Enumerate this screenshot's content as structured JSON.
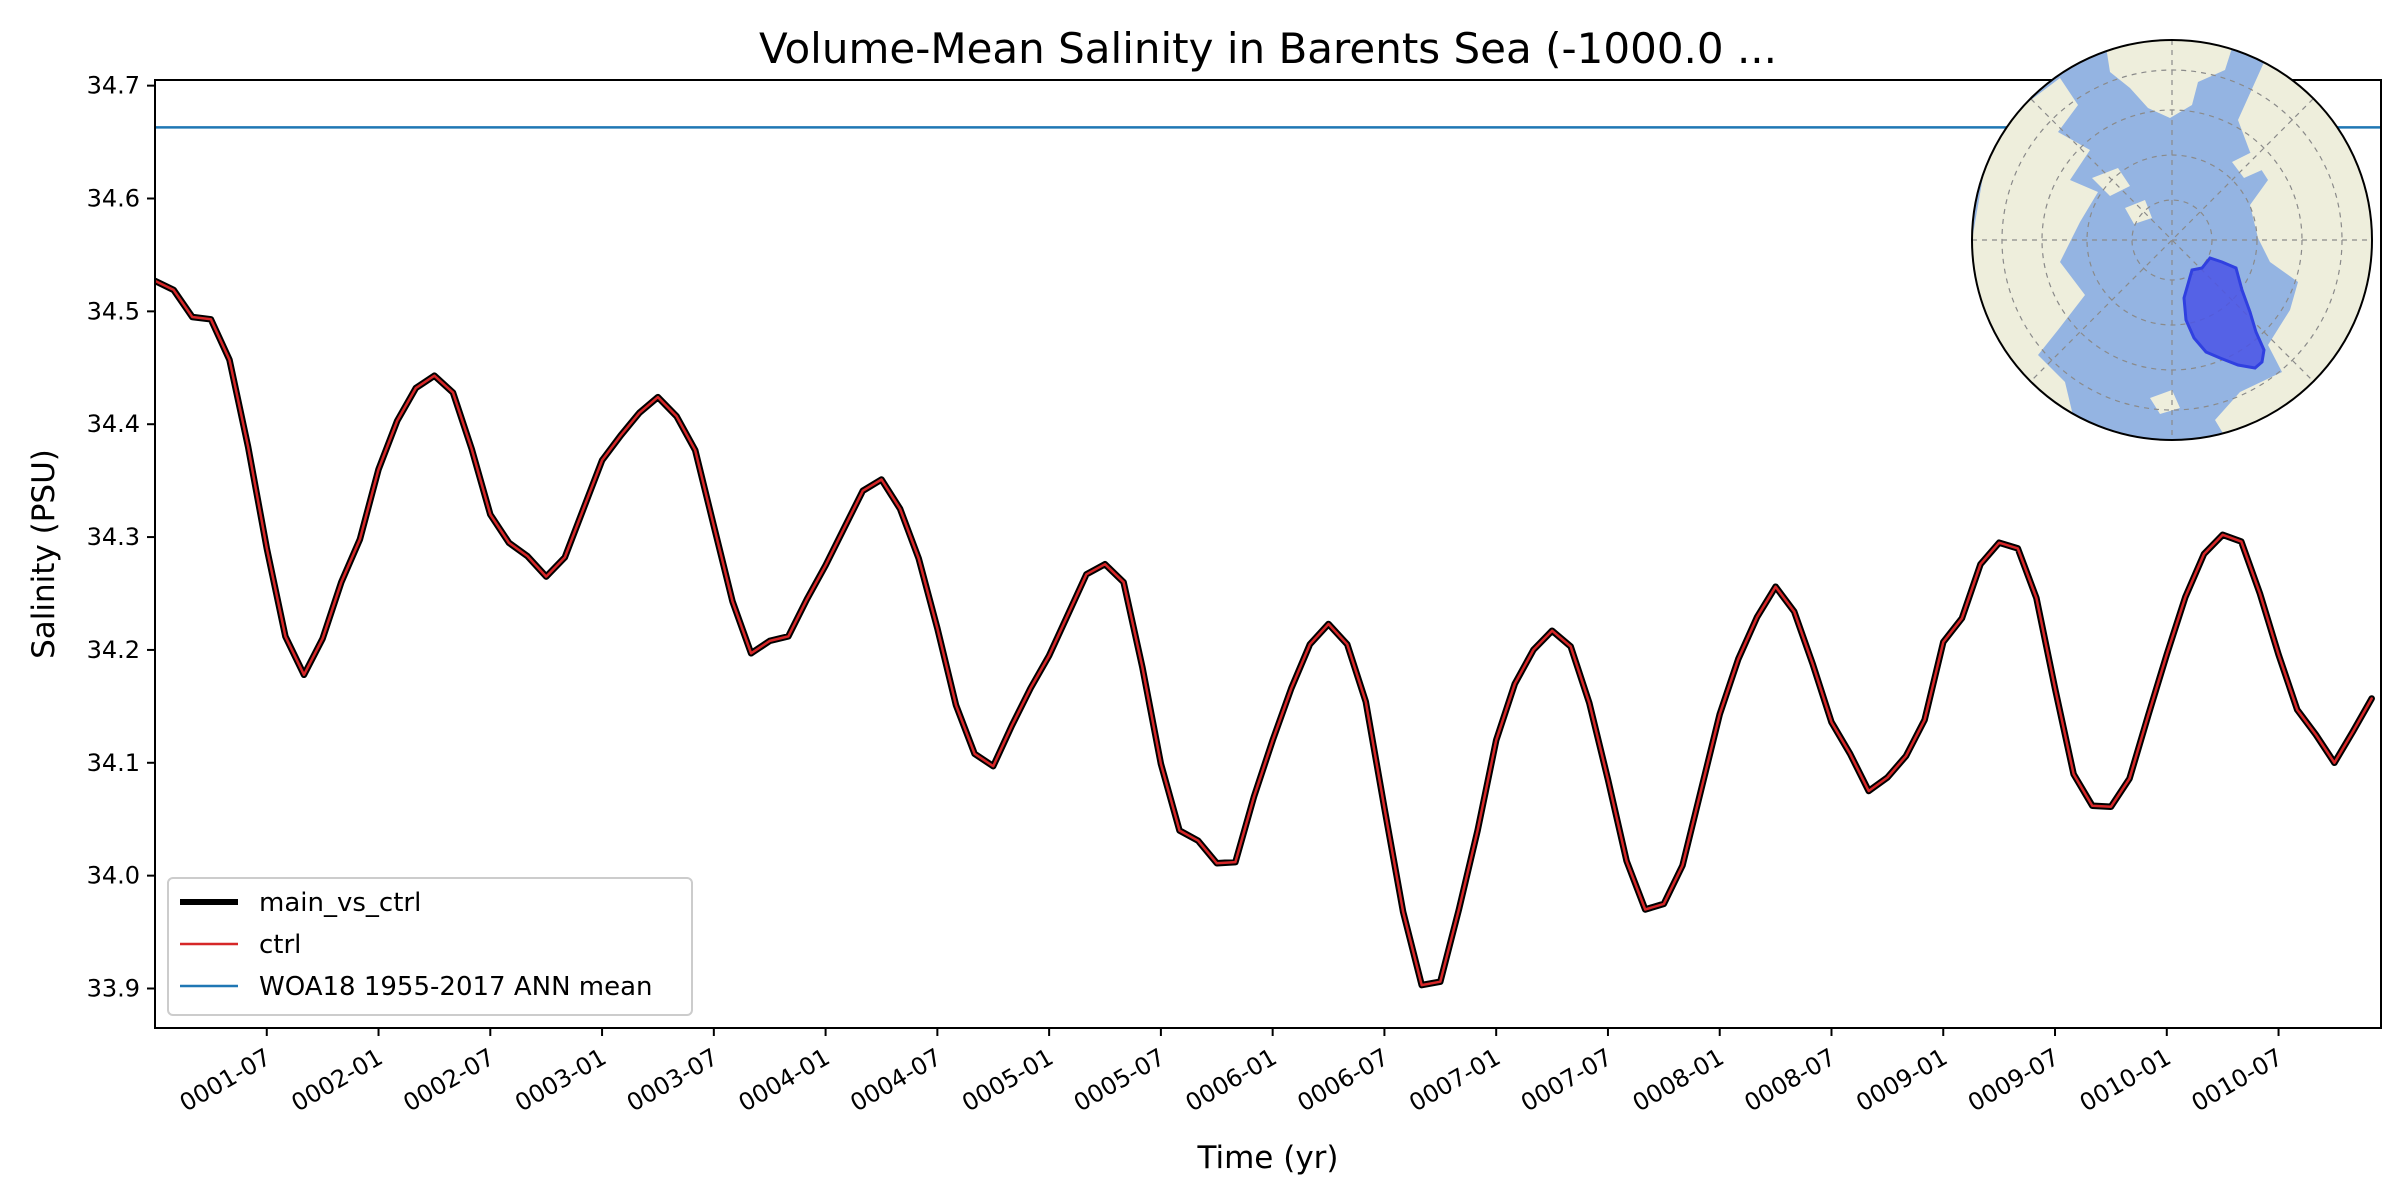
{
  "chart_data": {
    "type": "line",
    "title": "Volume-Mean Salinity in Barents Sea (-1000.0 ...",
    "xlabel": "Time (yr)",
    "ylabel": "Salinity (PSU)",
    "ylim": [
      33.865,
      34.705
    ],
    "y_ticks": [
      "33.9",
      "34.0",
      "34.1",
      "34.2",
      "34.3",
      "34.4",
      "34.5",
      "34.6",
      "34.7"
    ],
    "x_ticks": [
      {
        "t": 6.0,
        "label": "0001-07"
      },
      {
        "t": 12.0,
        "label": "0002-01"
      },
      {
        "t": 18.0,
        "label": "0002-07"
      },
      {
        "t": 24.0,
        "label": "0003-01"
      },
      {
        "t": 30.0,
        "label": "0003-07"
      },
      {
        "t": 36.0,
        "label": "0004-01"
      },
      {
        "t": 42.0,
        "label": "0004-07"
      },
      {
        "t": 48.0,
        "label": "0005-01"
      },
      {
        "t": 54.0,
        "label": "0005-07"
      },
      {
        "t": 60.0,
        "label": "0006-01"
      },
      {
        "t": 66.0,
        "label": "0006-07"
      },
      {
        "t": 72.0,
        "label": "0007-01"
      },
      {
        "t": 78.0,
        "label": "0007-07"
      },
      {
        "t": 84.0,
        "label": "0008-01"
      },
      {
        "t": 90.0,
        "label": "0008-07"
      },
      {
        "t": 96.0,
        "label": "0009-01"
      },
      {
        "t": 102.0,
        "label": "0009-07"
      },
      {
        "t": 108.0,
        "label": "0010-01"
      },
      {
        "t": 114.0,
        "label": "0010-07"
      }
    ],
    "xlim": [
      0.0,
      119.5
    ],
    "series": [
      {
        "name": "main_vs_ctrl",
        "color": "#000000",
        "values": [
          34.527,
          34.519,
          34.495,
          34.493,
          34.457,
          34.38,
          34.29,
          34.212,
          34.178,
          34.21,
          34.26,
          34.298,
          34.36,
          34.403,
          34.432,
          34.443,
          34.428,
          34.378,
          34.32,
          34.295,
          34.283,
          34.265,
          34.282,
          34.325,
          34.368,
          34.39,
          34.41,
          34.424,
          34.407,
          34.377,
          34.31,
          34.243,
          34.197,
          34.208,
          34.212,
          34.245,
          34.275,
          34.308,
          34.341,
          34.351,
          34.325,
          34.281,
          34.219,
          34.151,
          34.108,
          34.097,
          34.133,
          34.166,
          34.195,
          34.231,
          34.267,
          34.276,
          34.26,
          34.185,
          34.099,
          34.04,
          34.031,
          34.011,
          34.012,
          34.07,
          34.12,
          34.166,
          34.205,
          34.223,
          34.205,
          34.154,
          34.06,
          33.968,
          33.903,
          33.906,
          33.97,
          34.04,
          34.12,
          34.17,
          34.2,
          34.217,
          34.203,
          34.153,
          34.085,
          34.013,
          33.97,
          33.975,
          34.009,
          34.076,
          34.143,
          34.192,
          34.229,
          34.256,
          34.234,
          34.187,
          34.136,
          34.108,
          34.075,
          34.087,
          34.106,
          34.138,
          34.207,
          34.228,
          34.276,
          34.295,
          34.29,
          34.246,
          34.166,
          34.09,
          34.062,
          34.061,
          34.086,
          34.142,
          34.196,
          34.247,
          34.285,
          34.302,
          34.296,
          34.25,
          34.196,
          34.147,
          34.125,
          34.1,
          34.128,
          34.157
        ]
      },
      {
        "name": "ctrl",
        "color": "#d62728",
        "same_as": "main_vs_ctrl"
      },
      {
        "name": "WOA18 1955-2017 ANN mean",
        "color": "#1f77b4",
        "constant": 34.663
      }
    ],
    "legend_placement": "lower-left",
    "inset": {
      "type": "polar-map",
      "placement": "top-right",
      "highlight_color": "#4a54e6",
      "ocean_color": "#94b4e2",
      "land_color": "#eeeedc"
    }
  }
}
